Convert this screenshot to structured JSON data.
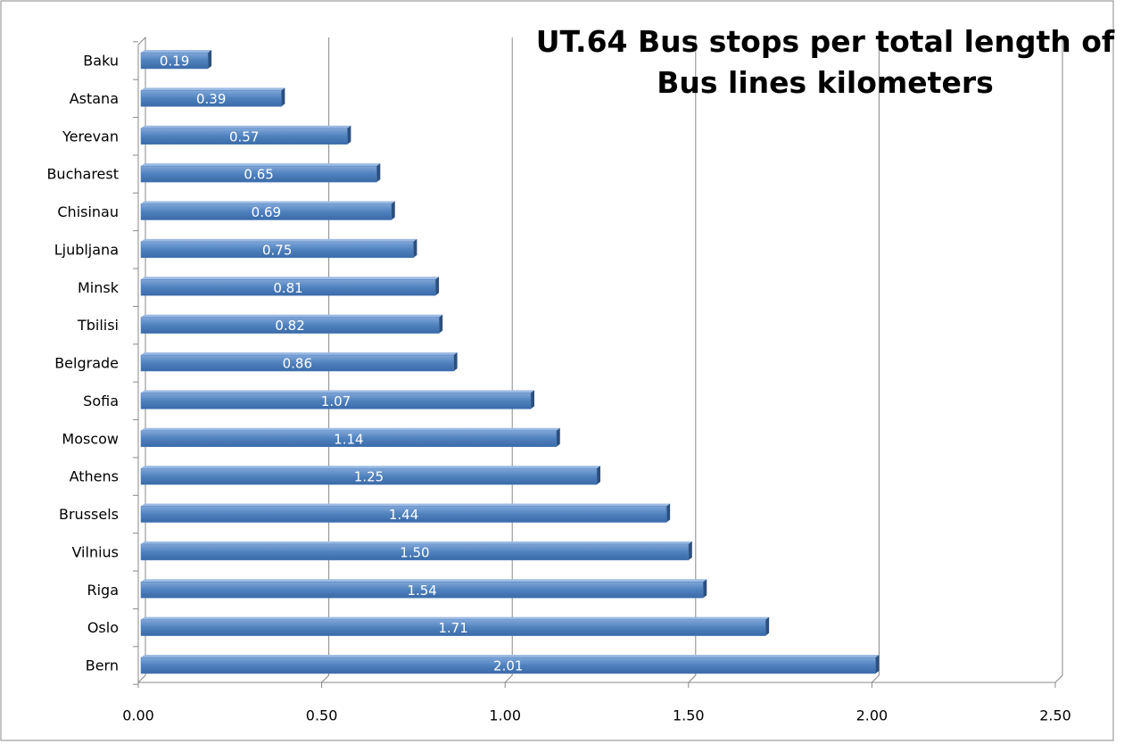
{
  "chart_data": {
    "type": "bar",
    "orientation": "horizontal",
    "title": "UT.64 Bus stops per total length of Bus lines kilometers",
    "categories": [
      "Baku",
      "Astana",
      "Yerevan",
      "Bucharest",
      "Chisinau",
      "Ljubljana",
      "Minsk",
      "Tbilisi",
      "Belgrade",
      "Sofia",
      "Moscow",
      "Athens",
      "Brussels",
      "Vilnius",
      "Riga",
      "Oslo",
      "Bern"
    ],
    "values": [
      0.19,
      0.39,
      0.57,
      0.65,
      0.69,
      0.75,
      0.81,
      0.82,
      0.86,
      1.07,
      1.14,
      1.25,
      1.44,
      1.5,
      1.54,
      1.71,
      2.01
    ],
    "value_labels": [
      "0.19",
      "0.39",
      "0.57",
      "0.65",
      "0.69",
      "0.75",
      "0.81",
      "0.82",
      "0.86",
      "1.07",
      "1.14",
      "1.25",
      "1.44",
      "1.50",
      "1.54",
      "1.71",
      "2.01"
    ],
    "color": "#4f81bd",
    "xlim": [
      0,
      2.5
    ],
    "xticks": [
      {
        "value": 0,
        "label": "0.00"
      },
      {
        "value": 0.5,
        "label": "0.50"
      },
      {
        "value": 1,
        "label": "1.00"
      },
      {
        "value": 1.5,
        "label": "1.50"
      },
      {
        "value": 2,
        "label": "2.00"
      },
      {
        "value": 2.5,
        "label": "2.50"
      }
    ],
    "grid": true
  }
}
